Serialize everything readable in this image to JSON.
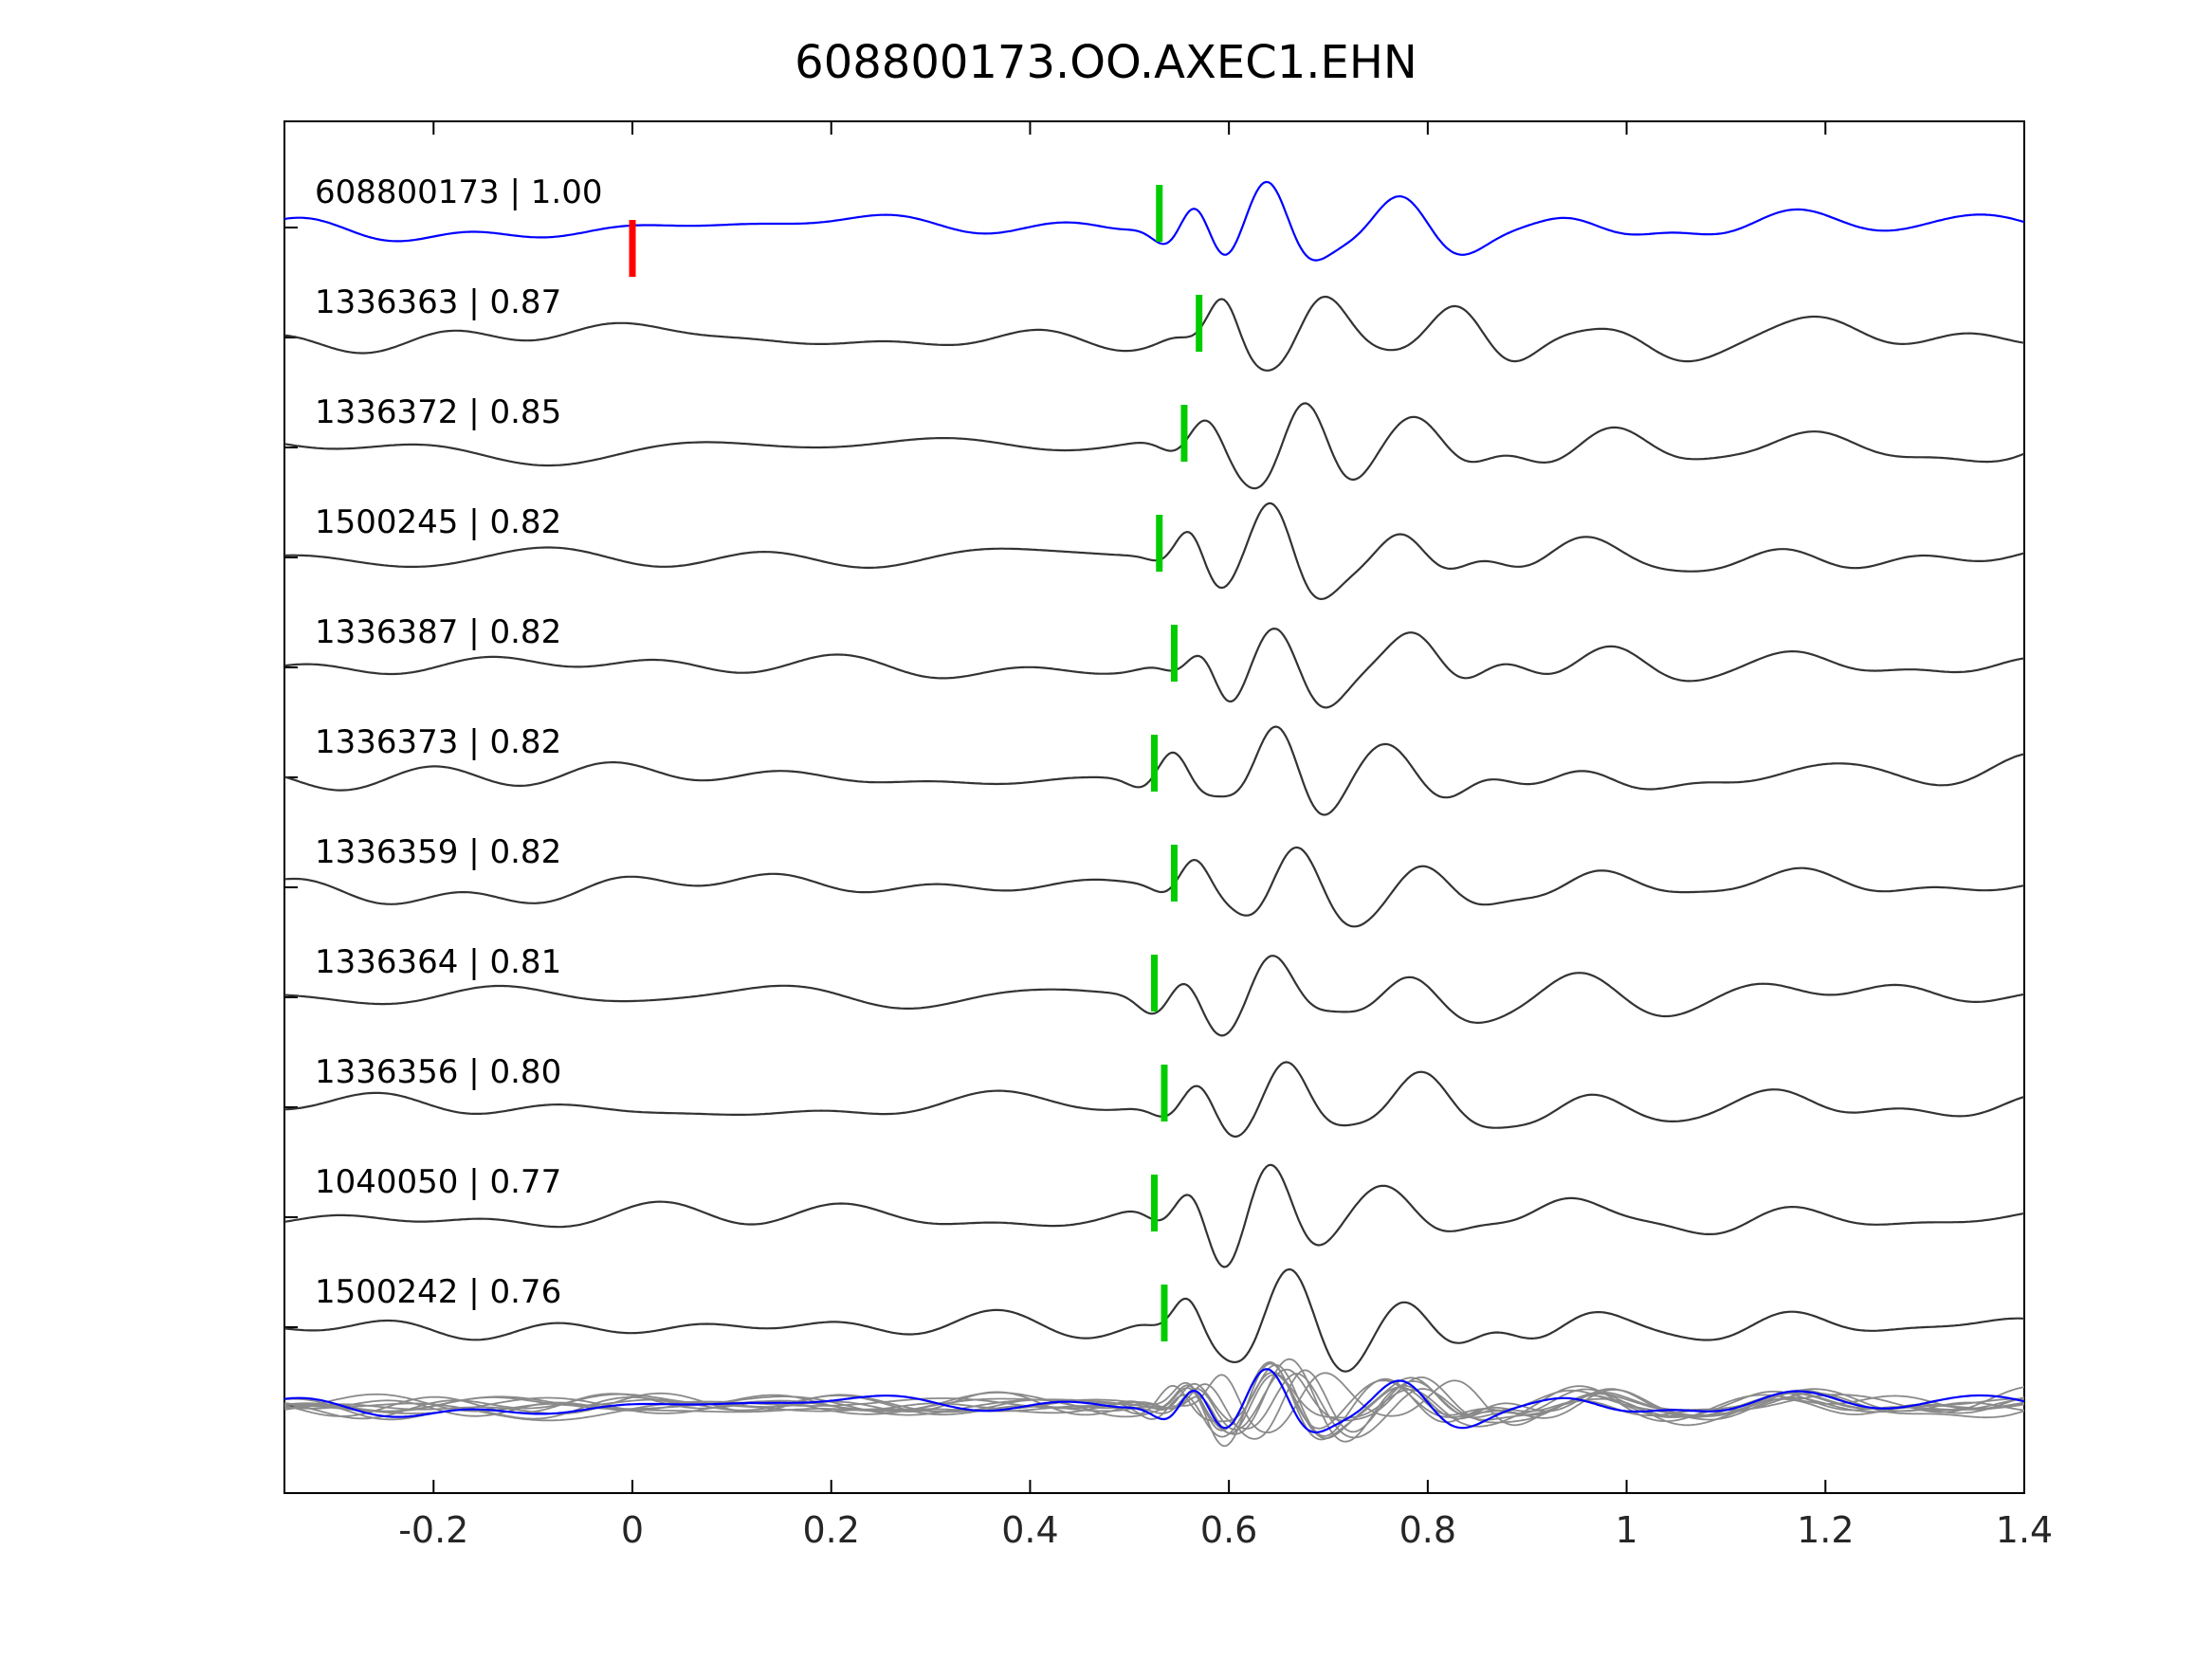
{
  "title": "608800173.OO.AXEC1.EHN",
  "chart_data": {
    "type": "line",
    "kind": "waveform-cross-correlation-stack",
    "title": "608800173.OO.AXEC1.EHN",
    "xlim": [
      -0.35,
      1.4
    ],
    "x_ticks": [
      -0.2,
      0,
      0.2,
      0.4,
      0.6,
      0.8,
      1,
      1.2,
      1.4
    ],
    "x_tick_labels": [
      "-0.2",
      "0",
      "0.2",
      "0.4",
      "0.6",
      "0.8",
      "1",
      "1.2",
      "1.4"
    ],
    "grid": false,
    "legend": "none",
    "colors": {
      "template_trace": "#0000ff",
      "detection_trace": "#333333",
      "pick_marker": "#00cc00",
      "reference_marker": "#ff0000",
      "overlay_trace": "#8a8a8a",
      "axis": "#000000"
    },
    "reference_marker": {
      "trace_index": 0,
      "x": 0.0
    },
    "traces": [
      {
        "label": "608800173 | 1.00",
        "id": "608800173",
        "score": 1.0,
        "pick_time": 0.53,
        "is_template": true
      },
      {
        "label": "1336363 | 0.87",
        "id": "1336363",
        "score": 0.87,
        "pick_time": 0.57,
        "is_template": false
      },
      {
        "label": "1336372 | 0.85",
        "id": "1336372",
        "score": 0.85,
        "pick_time": 0.555,
        "is_template": false
      },
      {
        "label": "1500245 | 0.82",
        "id": "1500245",
        "score": 0.82,
        "pick_time": 0.53,
        "is_template": false
      },
      {
        "label": "1336387 | 0.82",
        "id": "1336387",
        "score": 0.82,
        "pick_time": 0.545,
        "is_template": false
      },
      {
        "label": "1336373 | 0.82",
        "id": "1336373",
        "score": 0.82,
        "pick_time": 0.525,
        "is_template": false
      },
      {
        "label": "1336359 | 0.82",
        "id": "1336359",
        "score": 0.82,
        "pick_time": 0.545,
        "is_template": false
      },
      {
        "label": "1336364 | 0.81",
        "id": "1336364",
        "score": 0.81,
        "pick_time": 0.525,
        "is_template": false
      },
      {
        "label": "1336356 | 0.80",
        "id": "1336356",
        "score": 0.8,
        "pick_time": 0.535,
        "is_template": false
      },
      {
        "label": "1040050 | 0.77",
        "id": "1040050",
        "score": 0.77,
        "pick_time": 0.525,
        "is_template": false
      },
      {
        "label": "1500242 | 0.76",
        "id": "1500242",
        "score": 0.76,
        "pick_time": 0.535,
        "is_template": false
      }
    ],
    "overlay_row": {
      "present": true,
      "description": "all detection traces overlaid in gray with blue template on top"
    }
  }
}
